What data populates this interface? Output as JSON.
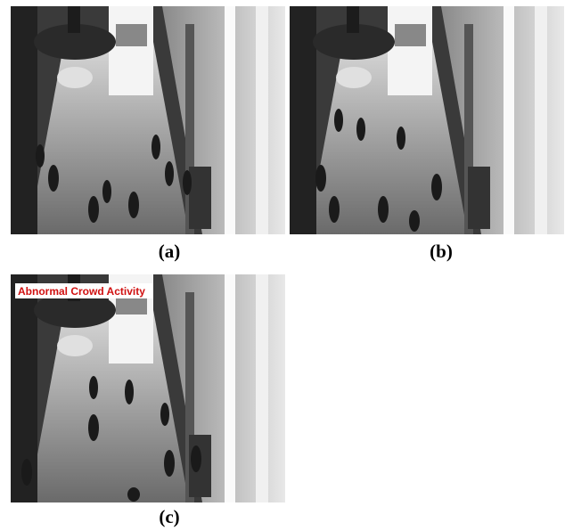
{
  "panels": [
    {
      "label": "(a)"
    },
    {
      "label": "(b)"
    },
    {
      "label": "(c)",
      "overlay": "Abnormal Crowd Activity"
    }
  ]
}
